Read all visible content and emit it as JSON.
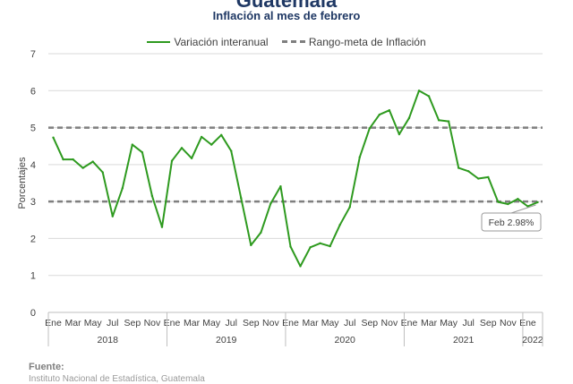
{
  "header": {
    "title": "Guatemala",
    "subtitle": "Inflación al mes de febrero"
  },
  "legend": {
    "series_label": "Variación interanual",
    "target_label": "Rango-meta de Inflación"
  },
  "annotation": {
    "label": "Feb 2.98%"
  },
  "footer": {
    "source_label": "Fuente:",
    "source_text": "Instituto Nacional de Estadística, Guatemala"
  },
  "colors": {
    "series": "#2e9a1f",
    "target": "#7f7f7f",
    "grid": "#d9d9d9",
    "axis_text": "#404040"
  },
  "chart_data": {
    "type": "line",
    "ylabel": "Porcentajes",
    "ylim": [
      0,
      7
    ],
    "yticks": [
      0,
      1,
      2,
      3,
      4,
      5,
      6,
      7
    ],
    "target_band": [
      3,
      5
    ],
    "month_tick_labels": [
      "Ene",
      "Mar",
      "May",
      "Jul",
      "Sep",
      "Nov",
      "Ene",
      "Mar",
      "May",
      "Jul",
      "Sep",
      "Nov",
      "Ene",
      "Mar",
      "May",
      "Jul",
      "Sep",
      "Nov",
      "Ene",
      "Mar",
      "May",
      "Jul",
      "Sep",
      "Nov",
      "Ene"
    ],
    "year_labels": [
      "2018",
      "2019",
      "2020",
      "2021",
      "2022"
    ],
    "year_month_counts": [
      12,
      12,
      12,
      12,
      2
    ],
    "series": [
      {
        "name": "Variación interanual",
        "values": [
          4.73,
          4.14,
          4.14,
          3.91,
          4.08,
          3.79,
          2.6,
          3.36,
          4.54,
          4.33,
          3.15,
          2.31,
          4.1,
          4.45,
          4.17,
          4.75,
          4.54,
          4.8,
          4.37,
          3.09,
          1.82,
          2.16,
          2.95,
          3.41,
          1.78,
          1.25,
          1.76,
          1.87,
          1.79,
          2.37,
          2.85,
          4.2,
          4.98,
          5.35,
          5.47,
          4.82,
          5.26,
          6.0,
          5.85,
          5.2,
          5.17,
          3.91,
          3.82,
          3.62,
          3.66,
          2.99,
          2.93,
          3.07,
          2.87,
          2.98
        ]
      }
    ]
  }
}
